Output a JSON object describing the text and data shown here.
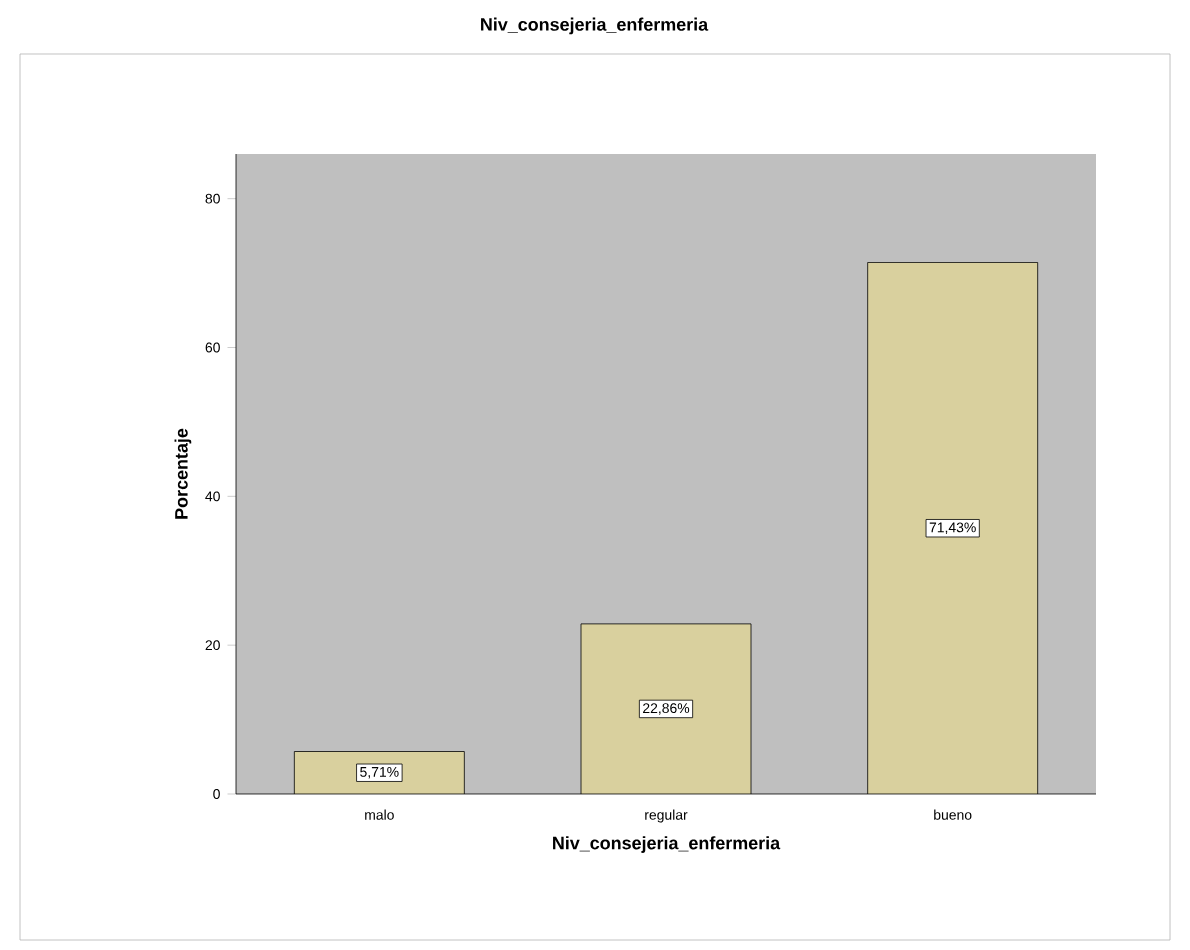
{
  "chart_data": {
    "type": "bar",
    "title": "Niv_consejeria_enfermeria",
    "xlabel": "Niv_consejeria_enfermeria",
    "ylabel": "Porcentaje",
    "categories": [
      "malo",
      "regular",
      "bueno"
    ],
    "values": [
      5.71,
      22.86,
      71.43
    ],
    "value_labels": [
      "5,71%",
      "22,86%",
      "71,43%"
    ],
    "color": "#d9d09e",
    "ylim": [
      0,
      86
    ],
    "yticks": [
      0,
      20,
      40,
      60,
      80
    ]
  }
}
